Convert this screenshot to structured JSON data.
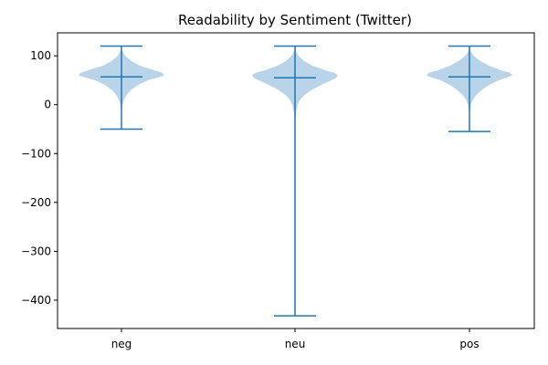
{
  "chart_data": {
    "type": "violin",
    "title": "Readability by Sentiment (Twitter)",
    "xlabel": "",
    "ylabel": "",
    "categories": [
      "neg",
      "neu",
      "pos"
    ],
    "ylim": [
      -458,
      147
    ],
    "yticks": [
      100,
      0,
      -100,
      -200,
      -300,
      -400
    ],
    "ytick_labels": [
      "100",
      "0",
      "−100",
      "−200",
      "−300",
      "−400"
    ],
    "grid": false,
    "colors": {
      "body": "#b9d3e8",
      "lines": "#1f77b4",
      "axes": "#000000"
    },
    "violins": [
      {
        "category": "neg",
        "min": -50,
        "median": 57,
        "max": 120,
        "density_y": [
          -50,
          -20,
          0,
          10,
          20,
          30,
          40,
          50,
          55,
          60,
          65,
          70,
          80,
          90,
          100,
          110,
          120
        ],
        "density_w": [
          0,
          0.005,
          0.02,
          0.06,
          0.12,
          0.22,
          0.38,
          0.62,
          0.82,
          1.0,
          0.95,
          0.78,
          0.42,
          0.22,
          0.09,
          0.02,
          0
        ]
      },
      {
        "category": "neu",
        "min": -432,
        "median": 55,
        "max": 120,
        "density_y": [
          -432,
          -100,
          -30,
          -15,
          0,
          10,
          20,
          30,
          40,
          50,
          55,
          60,
          65,
          70,
          80,
          90,
          100,
          110,
          120
        ],
        "density_w": [
          0,
          0.003,
          0.01,
          0.025,
          0.06,
          0.12,
          0.22,
          0.38,
          0.6,
          0.85,
          0.96,
          1.0,
          0.92,
          0.72,
          0.4,
          0.2,
          0.08,
          0.02,
          0
        ]
      },
      {
        "category": "pos",
        "min": -55,
        "median": 57,
        "max": 120,
        "density_y": [
          -55,
          -20,
          0,
          10,
          20,
          30,
          40,
          50,
          55,
          60,
          65,
          70,
          80,
          90,
          100,
          110,
          120
        ],
        "density_w": [
          0,
          0.005,
          0.03,
          0.08,
          0.16,
          0.28,
          0.45,
          0.68,
          0.86,
          1.0,
          0.95,
          0.75,
          0.45,
          0.24,
          0.1,
          0.02,
          0
        ]
      }
    ]
  }
}
